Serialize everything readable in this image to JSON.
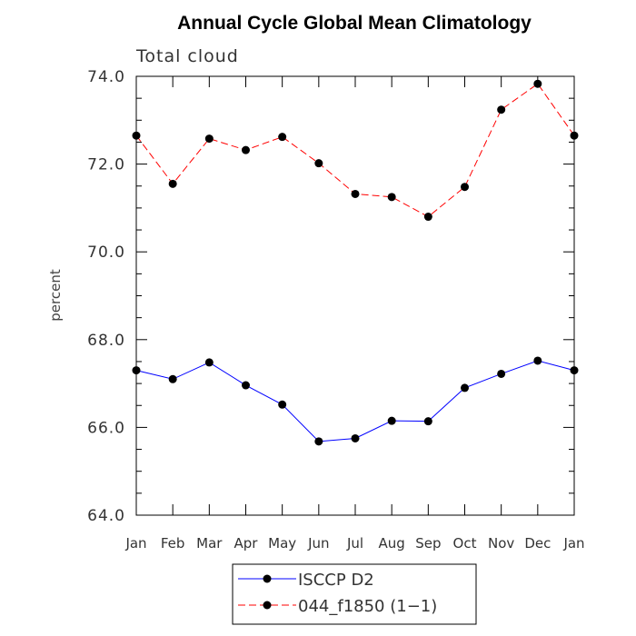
{
  "chart_data": {
    "type": "line",
    "title": "Annual Cycle Global Mean Climatology",
    "subtitle": "Total cloud",
    "xlabel": "",
    "ylabel": "percent",
    "categories": [
      "Jan",
      "Feb",
      "Mar",
      "Apr",
      "May",
      "Jun",
      "Jul",
      "Aug",
      "Sep",
      "Oct",
      "Nov",
      "Dec",
      "Jan"
    ],
    "ylim": [
      64.0,
      74.0
    ],
    "yticks": [
      "64.0",
      "66.0",
      "68.0",
      "70.0",
      "72.0",
      "74.0"
    ],
    "series": [
      {
        "name": "ISCCP D2",
        "color": "#0000ff",
        "dash": "solid",
        "values": [
          67.3,
          67.1,
          67.48,
          66.96,
          66.52,
          65.68,
          65.75,
          66.15,
          66.14,
          66.9,
          67.22,
          67.52,
          67.3
        ]
      },
      {
        "name": "044_f1850 (1−1)",
        "color": "#ff0000",
        "dash": "dashed",
        "values": [
          72.65,
          71.55,
          72.58,
          72.32,
          72.62,
          72.02,
          71.32,
          71.25,
          70.8,
          71.48,
          73.24,
          73.83,
          72.65
        ]
      }
    ],
    "legend_position": "bottom-center"
  }
}
